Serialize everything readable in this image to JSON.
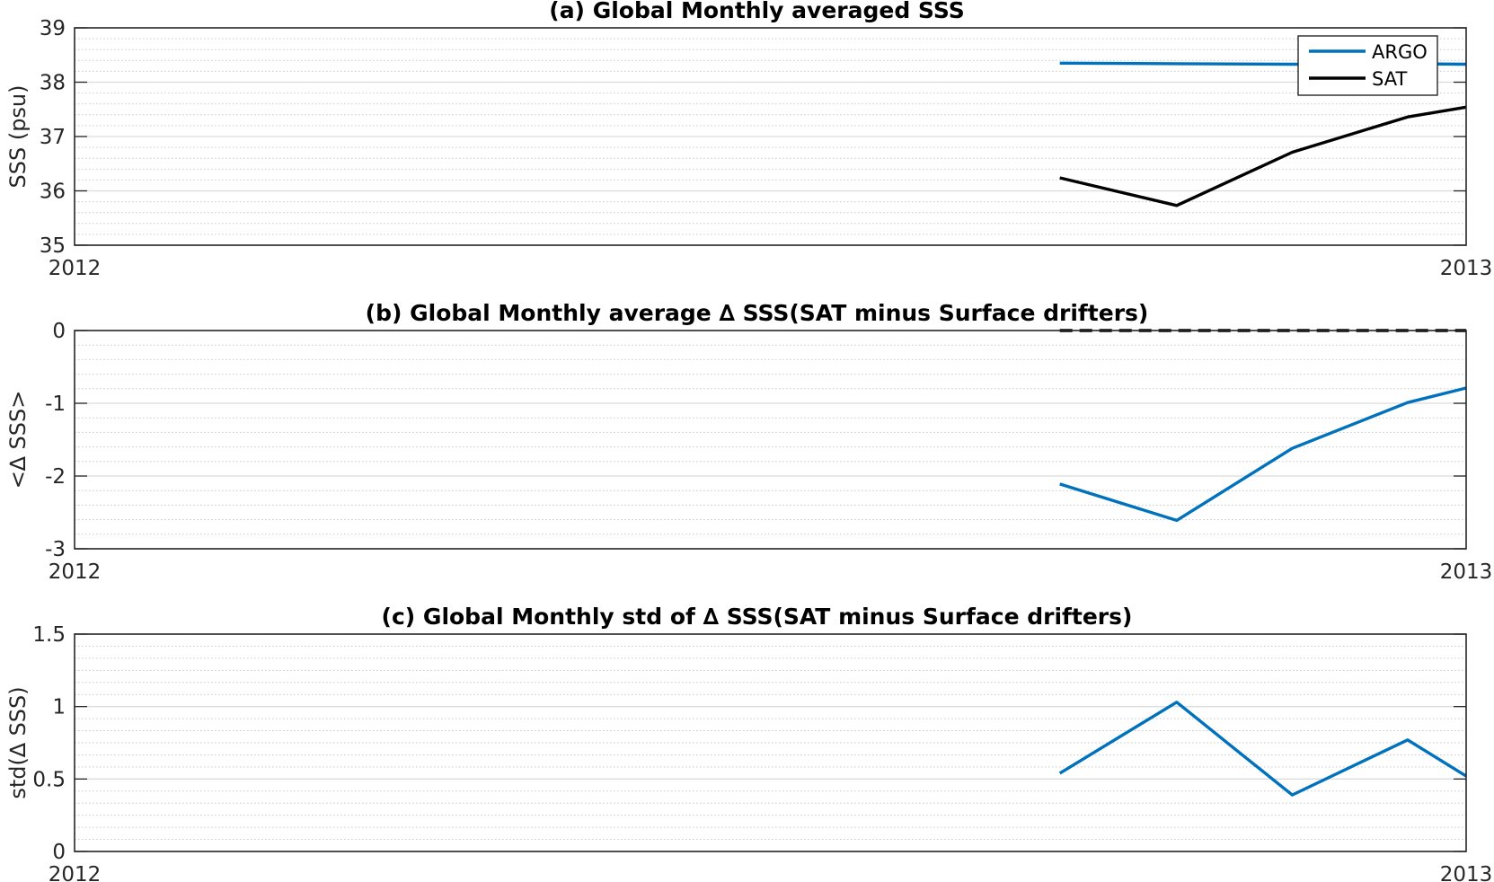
{
  "chart_data": [
    {
      "type": "line",
      "title": "(a) Global Monthly averaged SSS",
      "xlabel": "",
      "ylabel": "SSS (psu)",
      "xlim": [
        2012,
        2013
      ],
      "ylim": [
        35,
        39
      ],
      "yticks": [
        35,
        36,
        37,
        38,
        39
      ],
      "xtick_labels": [
        "2012",
        "2013"
      ],
      "grid": true,
      "legend_position": "top-right",
      "x": [
        2012.708,
        2012.792,
        2012.875,
        2012.958,
        2013.0
      ],
      "series": [
        {
          "name": "ARGO",
          "color": "#0072BD",
          "values": [
            38.35,
            38.34,
            38.33,
            38.34,
            38.33
          ]
        },
        {
          "name": "SAT",
          "color": "#000000",
          "values": [
            36.24,
            35.73,
            36.71,
            37.36,
            37.54
          ]
        }
      ]
    },
    {
      "type": "line",
      "title": "(b) Global Monthly average ∆ SSS(SAT minus Surface drifters)",
      "xlabel": "",
      "ylabel": "<∆ SSS>",
      "xlim": [
        2012,
        2013
      ],
      "ylim": [
        -3,
        0
      ],
      "yticks": [
        -3,
        -2,
        -1,
        0
      ],
      "xtick_labels": [
        "2012",
        "2013"
      ],
      "grid": true,
      "x": [
        2012.708,
        2012.792,
        2012.875,
        2012.958,
        2013.0
      ],
      "series": [
        {
          "color": "#0072BD",
          "values": [
            -2.11,
            -2.61,
            -1.62,
            -0.99,
            -0.79
          ]
        },
        {
          "color": "#000000",
          "dashed": true,
          "values": [
            0,
            0,
            0,
            0,
            0
          ]
        }
      ]
    },
    {
      "type": "line",
      "title": "(c) Global Monthly std of ∆ SSS(SAT minus Surface drifters)",
      "xlabel": "",
      "ylabel": "std(∆ SSS)",
      "xlim": [
        2012,
        2013
      ],
      "ylim": [
        0,
        1.5
      ],
      "yticks": [
        0,
        0.5,
        1,
        1.5
      ],
      "xtick_labels": [
        "2012",
        "2013"
      ],
      "grid": true,
      "x": [
        2012.708,
        2012.792,
        2012.875,
        2012.958,
        2013.0
      ],
      "series": [
        {
          "color": "#0072BD",
          "values": [
            0.54,
            1.03,
            0.39,
            0.77,
            0.52
          ]
        }
      ]
    }
  ]
}
